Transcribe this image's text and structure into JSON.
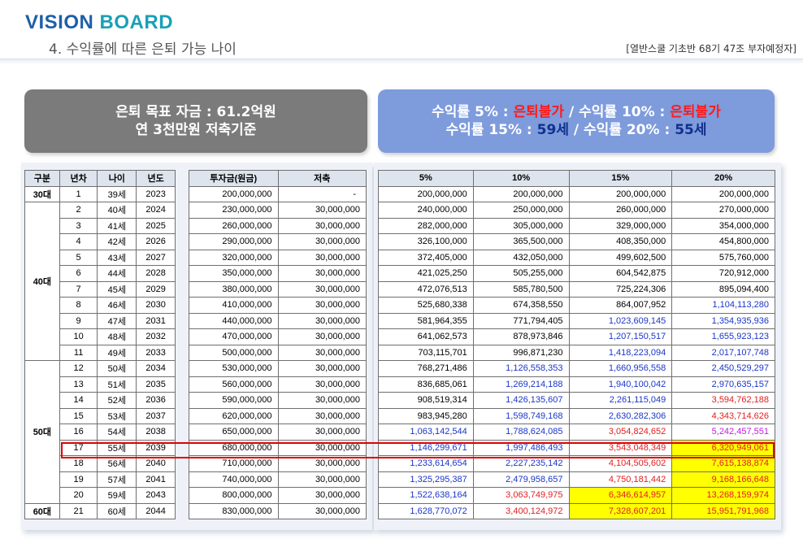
{
  "logo": {
    "word1": "VISION",
    "word2": "BOARD"
  },
  "subtitle": "4. 수익률에 따른 은퇴 가능 나이",
  "source": "[열반스쿨 기초반 68기 47조 부자예정자]",
  "left_box": {
    "line1": "은퇴 목표 자금 : 61.2억원",
    "line2": "연 3천만원 저축기준"
  },
  "right_box": {
    "l1a": "수익률 5% : ",
    "l1b": "은퇴불가",
    "l1c": " / 수익률 10% : ",
    "l1d": "은퇴불가",
    "l2a": "수익률 15% : ",
    "l2b": "59세",
    "l2c": " / 수익률 20% : ",
    "l2d": "55세"
  },
  "headers": {
    "group": "구분",
    "year_no": "년차",
    "age": "나이",
    "year": "년도",
    "invest": "투자금(원금)",
    "saving": "저축",
    "r5": "5%",
    "r10": "10%",
    "r15": "15%",
    "r20": "20%"
  },
  "groups": [
    "30대",
    "40대",
    "50대",
    "60대"
  ],
  "rows": [
    {
      "n": "1",
      "age": "39세",
      "year": "2023",
      "invest": "200,000,000",
      "saving": "-",
      "r5": "200,000,000",
      "r10": "200,000,000",
      "r15": "200,000,000",
      "r20": "200,000,000"
    },
    {
      "n": "2",
      "age": "40세",
      "year": "2024",
      "invest": "230,000,000",
      "saving": "30,000,000",
      "r5": "240,000,000",
      "r10": "250,000,000",
      "r15": "260,000,000",
      "r20": "270,000,000"
    },
    {
      "n": "3",
      "age": "41세",
      "year": "2025",
      "invest": "260,000,000",
      "saving": "30,000,000",
      "r5": "282,000,000",
      "r10": "305,000,000",
      "r15": "329,000,000",
      "r20": "354,000,000"
    },
    {
      "n": "4",
      "age": "42세",
      "year": "2026",
      "invest": "290,000,000",
      "saving": "30,000,000",
      "r5": "326,100,000",
      "r10": "365,500,000",
      "r15": "408,350,000",
      "r20": "454,800,000"
    },
    {
      "n": "5",
      "age": "43세",
      "year": "2027",
      "invest": "320,000,000",
      "saving": "30,000,000",
      "r5": "372,405,000",
      "r10": "432,050,000",
      "r15": "499,602,500",
      "r20": "575,760,000"
    },
    {
      "n": "6",
      "age": "44세",
      "year": "2028",
      "invest": "350,000,000",
      "saving": "30,000,000",
      "r5": "421,025,250",
      "r10": "505,255,000",
      "r15": "604,542,875",
      "r20": "720,912,000"
    },
    {
      "n": "7",
      "age": "45세",
      "year": "2029",
      "invest": "380,000,000",
      "saving": "30,000,000",
      "r5": "472,076,513",
      "r10": "585,780,500",
      "r15": "725,224,306",
      "r20": "895,094,400"
    },
    {
      "n": "8",
      "age": "46세",
      "year": "2030",
      "invest": "410,000,000",
      "saving": "30,000,000",
      "r5": "525,680,338",
      "r10": "674,358,550",
      "r15": "864,007,952",
      "r20": "1,104,113,280"
    },
    {
      "n": "9",
      "age": "47세",
      "year": "2031",
      "invest": "440,000,000",
      "saving": "30,000,000",
      "r5": "581,964,355",
      "r10": "771,794,405",
      "r15": "1,023,609,145",
      "r20": "1,354,935,936"
    },
    {
      "n": "10",
      "age": "48세",
      "year": "2032",
      "invest": "470,000,000",
      "saving": "30,000,000",
      "r5": "641,062,573",
      "r10": "878,973,846",
      "r15": "1,207,150,517",
      "r20": "1,655,923,123"
    },
    {
      "n": "11",
      "age": "49세",
      "year": "2033",
      "invest": "500,000,000",
      "saving": "30,000,000",
      "r5": "703,115,701",
      "r10": "996,871,230",
      "r15": "1,418,223,094",
      "r20": "2,017,107,748"
    },
    {
      "n": "12",
      "age": "50세",
      "year": "2034",
      "invest": "530,000,000",
      "saving": "30,000,000",
      "r5": "768,271,486",
      "r10": "1,126,558,353",
      "r15": "1,660,956,558",
      "r20": "2,450,529,297"
    },
    {
      "n": "13",
      "age": "51세",
      "year": "2035",
      "invest": "560,000,000",
      "saving": "30,000,000",
      "r5": "836,685,061",
      "r10": "1,269,214,188",
      "r15": "1,940,100,042",
      "r20": "2,970,635,157"
    },
    {
      "n": "14",
      "age": "52세",
      "year": "2036",
      "invest": "590,000,000",
      "saving": "30,000,000",
      "r5": "908,519,314",
      "r10": "1,426,135,607",
      "r15": "2,261,115,049",
      "r20": "3,594,762,188"
    },
    {
      "n": "15",
      "age": "53세",
      "year": "2037",
      "invest": "620,000,000",
      "saving": "30,000,000",
      "r5": "983,945,280",
      "r10": "1,598,749,168",
      "r15": "2,630,282,306",
      "r20": "4,343,714,626"
    },
    {
      "n": "16",
      "age": "54세",
      "year": "2038",
      "invest": "650,000,000",
      "saving": "30,000,000",
      "r5": "1,063,142,544",
      "r10": "1,788,624,085",
      "r15": "3,054,824,652",
      "r20": "5,242,457,551"
    },
    {
      "n": "17",
      "age": "55세",
      "year": "2039",
      "invest": "680,000,000",
      "saving": "30,000,000",
      "r5": "1,146,299,671",
      "r10": "1,997,486,493",
      "r15": "3,543,048,349",
      "r20": "6,320,949,061"
    },
    {
      "n": "18",
      "age": "56세",
      "year": "2040",
      "invest": "710,000,000",
      "saving": "30,000,000",
      "r5": "1,233,614,654",
      "r10": "2,227,235,142",
      "r15": "4,104,505,602",
      "r20": "7,615,138,874"
    },
    {
      "n": "19",
      "age": "57세",
      "year": "2041",
      "invest": "740,000,000",
      "saving": "30,000,000",
      "r5": "1,325,295,387",
      "r10": "2,479,958,657",
      "r15": "4,750,181,442",
      "r20": "9,168,166,648"
    },
    {
      "n": "20",
      "age": "59세",
      "year": "2043",
      "invest": "800,000,000",
      "saving": "30,000,000",
      "r5": "1,522,638,164",
      "r10": "3,063,749,975",
      "r15": "6,346,614,957",
      "r20": "13,268,159,974"
    },
    {
      "n": "21",
      "age": "60세",
      "year": "2044",
      "invest": "830,000,000",
      "saving": "30,000,000",
      "r5": "1,628,770,072",
      "r10": "3,400,124,972",
      "r15": "7,328,607,201",
      "r20": "15,951,791,968"
    }
  ],
  "colors": {
    "billion": "#1a35c8",
    "three_billion": "#e02020",
    "five_billion": "#c020d8",
    "goal_reached_bg": "#ffff00",
    "highlight_box": "#e00000"
  }
}
